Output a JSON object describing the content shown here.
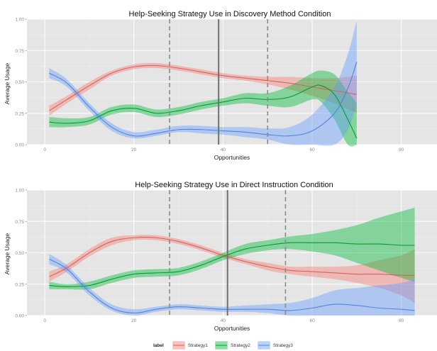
{
  "chart_data": [
    {
      "type": "line",
      "title": "Help-Seeking Strategy Use in Discovery Method Condition",
      "xlabel": "Opportunities",
      "ylabel": "Average Usage",
      "xlim": [
        -4,
        88
      ],
      "ylim": [
        0,
        1
      ],
      "x_ticks": [
        0,
        20,
        40,
        60,
        80
      ],
      "y_ticks": [
        0.0,
        0.25,
        0.5,
        0.75,
        1.0
      ],
      "x_tick_labels": [
        "0",
        "20",
        "40",
        "60",
        "80"
      ],
      "y_tick_labels": [
        "0.00",
        "0.25",
        "0.50",
        "0.75",
        "1.00"
      ],
      "grid": true,
      "vlines": [
        {
          "x": 28,
          "style": "dashed"
        },
        {
          "x": 39,
          "style": "solid"
        },
        {
          "x": 50,
          "style": "dashed"
        }
      ],
      "series": [
        {
          "name": "Strategy1",
          "color": "#f8766d",
          "x": [
            1,
            5,
            10,
            15,
            20,
            25,
            30,
            35,
            40,
            45,
            50,
            55,
            60,
            65,
            70
          ],
          "y": [
            0.27,
            0.36,
            0.47,
            0.57,
            0.62,
            0.63,
            0.61,
            0.58,
            0.55,
            0.53,
            0.51,
            0.49,
            0.46,
            0.43,
            0.4
          ],
          "lower": [
            0.23,
            0.33,
            0.44,
            0.55,
            0.6,
            0.61,
            0.59,
            0.56,
            0.53,
            0.51,
            0.48,
            0.44,
            0.39,
            0.33,
            0.25
          ],
          "upper": [
            0.31,
            0.39,
            0.5,
            0.59,
            0.64,
            0.65,
            0.63,
            0.6,
            0.57,
            0.55,
            0.54,
            0.54,
            0.53,
            0.53,
            0.55
          ]
        },
        {
          "name": "Strategy2",
          "color": "#00ba38",
          "x": [
            1,
            5,
            10,
            15,
            20,
            25,
            30,
            35,
            40,
            45,
            50,
            55,
            60,
            62,
            65,
            68,
            70
          ],
          "y": [
            0.18,
            0.17,
            0.19,
            0.27,
            0.29,
            0.25,
            0.27,
            0.31,
            0.34,
            0.37,
            0.36,
            0.38,
            0.46,
            0.47,
            0.4,
            0.2,
            0.05
          ],
          "lower": [
            0.14,
            0.14,
            0.16,
            0.24,
            0.26,
            0.22,
            0.24,
            0.28,
            0.31,
            0.33,
            0.31,
            0.3,
            0.36,
            0.34,
            0.2,
            0.0,
            0.0
          ],
          "upper": [
            0.22,
            0.21,
            0.22,
            0.3,
            0.32,
            0.28,
            0.3,
            0.34,
            0.37,
            0.41,
            0.41,
            0.47,
            0.57,
            0.59,
            0.56,
            0.42,
            0.33
          ]
        },
        {
          "name": "Strategy3",
          "color": "#619cff",
          "x": [
            1,
            5,
            10,
            15,
            20,
            25,
            30,
            35,
            40,
            45,
            50,
            55,
            60,
            65,
            68,
            70
          ],
          "y": [
            0.57,
            0.49,
            0.3,
            0.14,
            0.07,
            0.09,
            0.12,
            0.12,
            0.11,
            0.1,
            0.08,
            0.07,
            0.11,
            0.25,
            0.45,
            0.66
          ],
          "lower": [
            0.53,
            0.46,
            0.27,
            0.11,
            0.05,
            0.07,
            0.1,
            0.09,
            0.08,
            0.06,
            0.04,
            0.0,
            0.0,
            0.0,
            0.12,
            0.32
          ],
          "upper": [
            0.61,
            0.52,
            0.33,
            0.17,
            0.1,
            0.12,
            0.15,
            0.15,
            0.14,
            0.14,
            0.13,
            0.14,
            0.24,
            0.46,
            0.72,
            0.99
          ]
        }
      ]
    },
    {
      "type": "line",
      "title": "Help-Seeking Strategy Use in Direct Instruction Condition",
      "xlabel": "Opportunities",
      "ylabel": "Average Usage",
      "xlim": [
        -4,
        88
      ],
      "ylim": [
        0,
        1
      ],
      "x_ticks": [
        0,
        20,
        40,
        60,
        80
      ],
      "y_ticks": [
        0.0,
        0.25,
        0.5,
        0.75,
        1.0
      ],
      "x_tick_labels": [
        "0",
        "20",
        "40",
        "60",
        "80"
      ],
      "y_tick_labels": [
        "0.00",
        "0.25",
        "0.50",
        "0.75",
        "1.00"
      ],
      "grid": true,
      "vlines": [
        {
          "x": 28,
          "style": "dashed"
        },
        {
          "x": 41,
          "style": "solid"
        },
        {
          "x": 54,
          "style": "dashed"
        }
      ],
      "series": [
        {
          "name": "Strategy1",
          "color": "#f8766d",
          "x": [
            1,
            5,
            10,
            15,
            20,
            25,
            30,
            35,
            40,
            45,
            50,
            55,
            60,
            65,
            70,
            75,
            80,
            83
          ],
          "y": [
            0.31,
            0.38,
            0.5,
            0.59,
            0.62,
            0.62,
            0.59,
            0.54,
            0.48,
            0.43,
            0.39,
            0.36,
            0.35,
            0.34,
            0.33,
            0.33,
            0.32,
            0.32
          ],
          "lower": [
            0.27,
            0.35,
            0.47,
            0.56,
            0.6,
            0.6,
            0.57,
            0.52,
            0.46,
            0.41,
            0.36,
            0.33,
            0.31,
            0.29,
            0.26,
            0.22,
            0.16,
            0.1
          ],
          "upper": [
            0.35,
            0.41,
            0.53,
            0.62,
            0.64,
            0.64,
            0.61,
            0.56,
            0.5,
            0.45,
            0.42,
            0.39,
            0.39,
            0.39,
            0.4,
            0.44,
            0.48,
            0.53
          ]
        },
        {
          "name": "Strategy2",
          "color": "#00ba38",
          "x": [
            1,
            5,
            10,
            15,
            20,
            25,
            30,
            35,
            40,
            45,
            50,
            55,
            60,
            65,
            70,
            75,
            80,
            83
          ],
          "y": [
            0.24,
            0.23,
            0.24,
            0.29,
            0.33,
            0.34,
            0.35,
            0.4,
            0.47,
            0.53,
            0.56,
            0.58,
            0.58,
            0.58,
            0.57,
            0.57,
            0.56,
            0.56
          ],
          "lower": [
            0.21,
            0.21,
            0.21,
            0.26,
            0.3,
            0.31,
            0.32,
            0.37,
            0.44,
            0.49,
            0.52,
            0.53,
            0.51,
            0.48,
            0.42,
            0.36,
            0.3,
            0.27
          ],
          "upper": [
            0.27,
            0.25,
            0.27,
            0.32,
            0.36,
            0.37,
            0.38,
            0.43,
            0.5,
            0.57,
            0.6,
            0.63,
            0.65,
            0.68,
            0.72,
            0.78,
            0.83,
            0.86
          ]
        },
        {
          "name": "Strategy3",
          "color": "#619cff",
          "x": [
            1,
            5,
            10,
            15,
            20,
            25,
            30,
            35,
            40,
            45,
            50,
            55,
            60,
            65,
            70,
            75,
            80,
            83
          ],
          "y": [
            0.45,
            0.37,
            0.19,
            0.06,
            0.02,
            0.05,
            0.07,
            0.06,
            0.05,
            0.05,
            0.05,
            0.04,
            0.06,
            0.09,
            0.08,
            0.06,
            0.05,
            0.04
          ],
          "lower": [
            0.41,
            0.34,
            0.16,
            0.04,
            0.0,
            0.03,
            0.05,
            0.04,
            0.03,
            0.03,
            0.02,
            0.0,
            0.0,
            0.0,
            0.0,
            0.0,
            0.0,
            0.0
          ],
          "upper": [
            0.49,
            0.4,
            0.22,
            0.09,
            0.05,
            0.07,
            0.09,
            0.08,
            0.07,
            0.08,
            0.09,
            0.1,
            0.14,
            0.2,
            0.22,
            0.24,
            0.26,
            0.29
          ]
        }
      ]
    }
  ],
  "legend": {
    "title": "label",
    "placement": "bottom",
    "items": [
      {
        "label": "Strategy1",
        "color": "#f8766d"
      },
      {
        "label": "Strategy2",
        "color": "#00ba38"
      },
      {
        "label": "Strategy3",
        "color": "#619cff"
      }
    ]
  }
}
